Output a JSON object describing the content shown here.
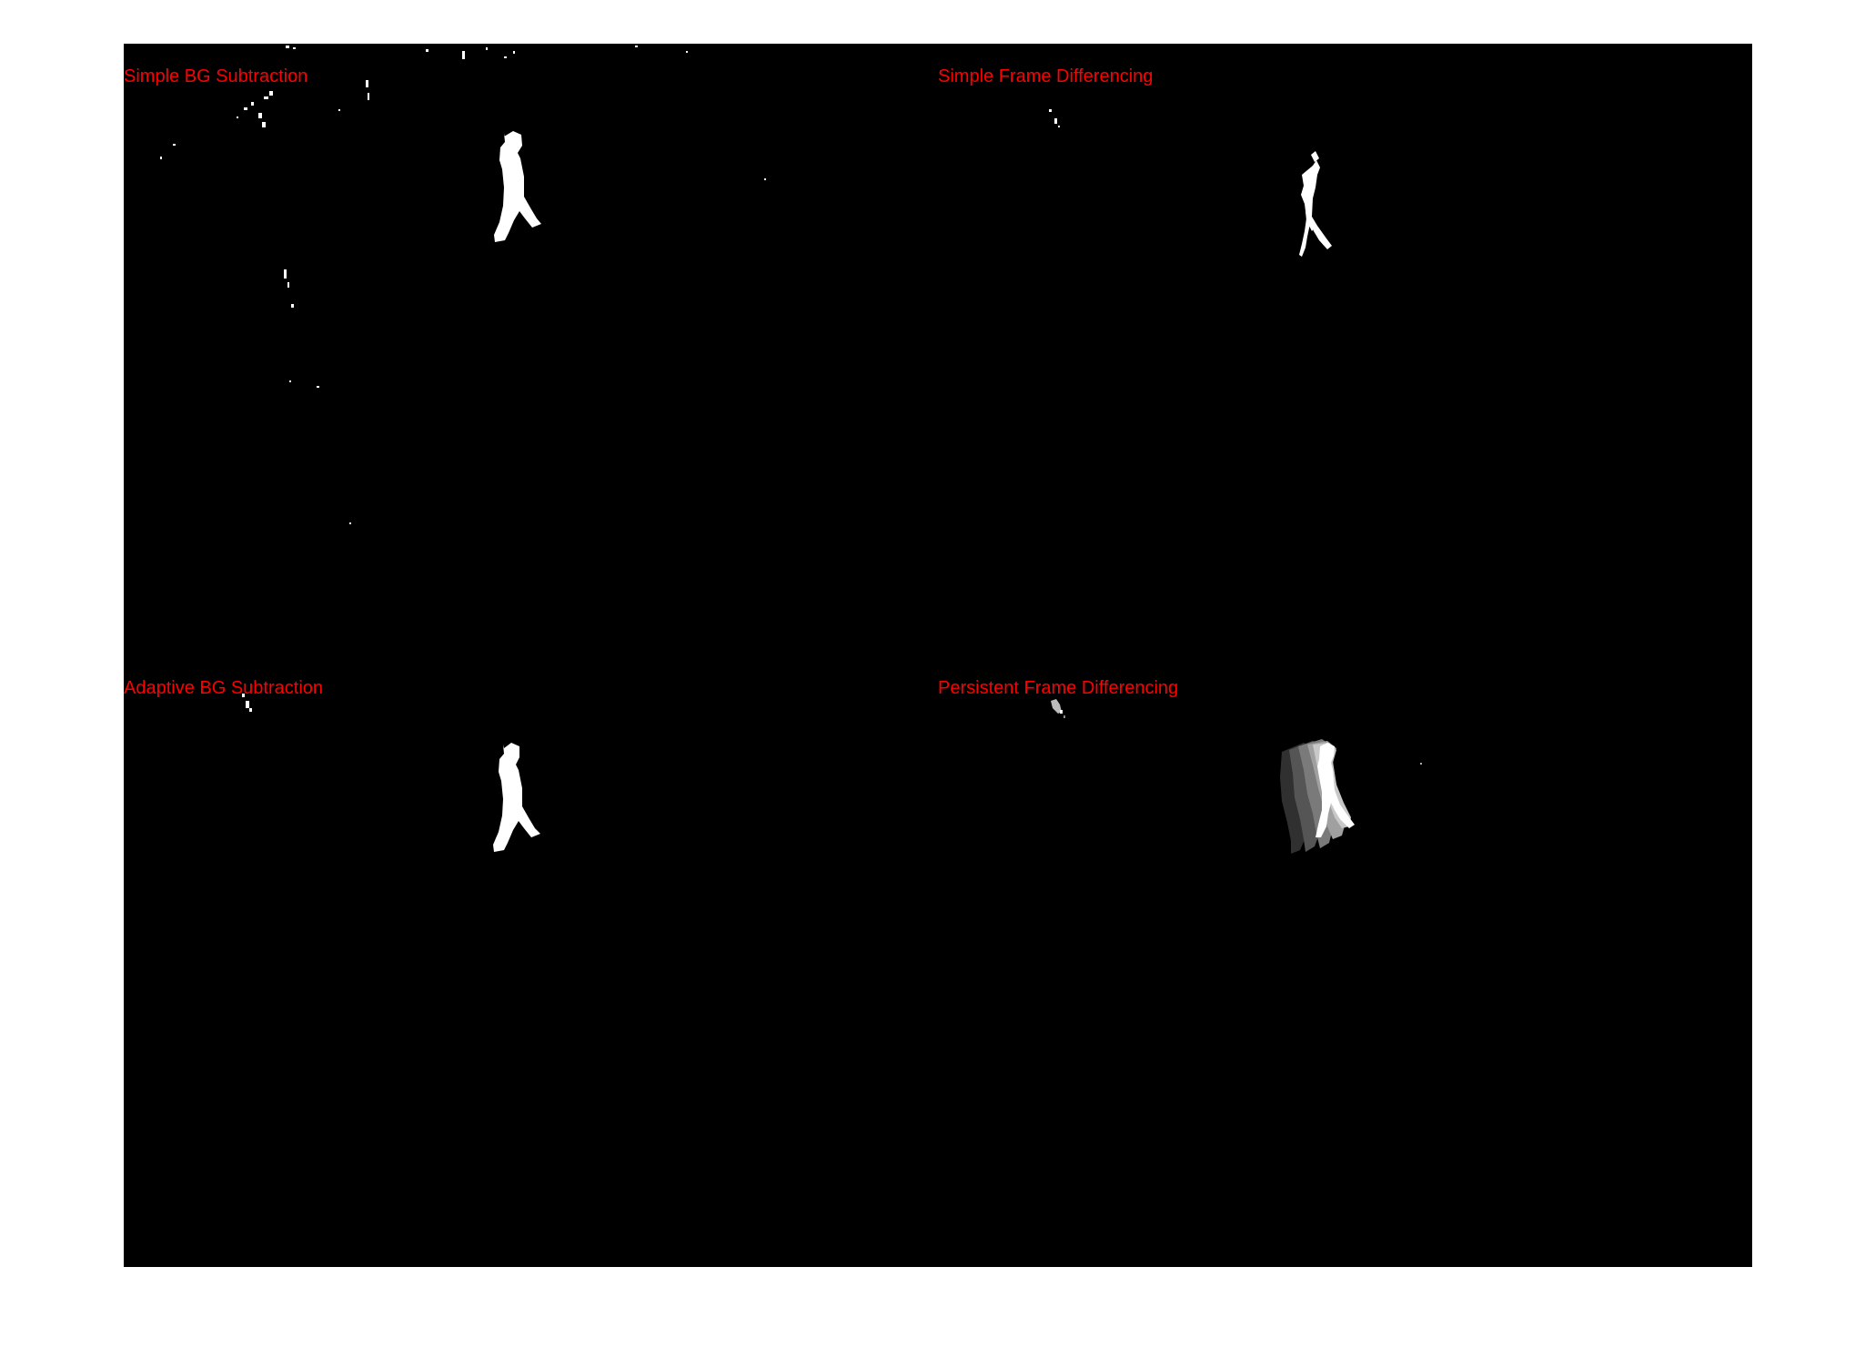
{
  "panels": [
    {
      "id": "top-left",
      "label": "Simple BG Subtraction"
    },
    {
      "id": "top-right",
      "label": "Simple Frame Differencing"
    },
    {
      "id": "bottom-left",
      "label": "Adaptive BG Subtraction"
    },
    {
      "id": "bottom-right",
      "label": "Persistent Frame Differencing"
    }
  ],
  "colors": {
    "background": "#ffffff",
    "frame": "#000000",
    "foreground": "#ffffff",
    "label": "#ff0000"
  }
}
